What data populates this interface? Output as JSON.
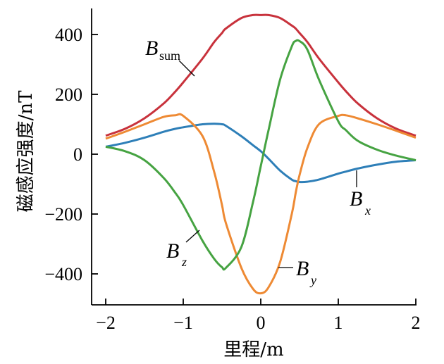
{
  "chart_data": {
    "type": "line",
    "xlabel": "里程/m",
    "ylabel": "磁感应强度/nT",
    "xlim": [
      -2,
      2
    ],
    "ylim": [
      -500,
      490
    ],
    "xticks": [
      -2,
      -1,
      0,
      1,
      2
    ],
    "yticks": [
      -400,
      -200,
      0,
      200,
      400
    ],
    "xtick_labels": [
      "−2",
      "−1",
      "0",
      "1",
      "2"
    ],
    "ytick_labels": [
      "−400",
      "−200",
      "0",
      "200",
      "400"
    ],
    "grid": false,
    "x": [
      -2,
      -1.75,
      -1.5,
      -1.25,
      -1.1,
      -1,
      -0.75,
      -0.6,
      -0.5,
      -0.45,
      -0.25,
      -0.1,
      0,
      0.1,
      0.25,
      0.4,
      0.45,
      0.5,
      0.6,
      0.75,
      1,
      1.1,
      1.25,
      1.5,
      1.75,
      2
    ],
    "series": [
      {
        "name": "B",
        "sub": "sum",
        "color": "#c8323c",
        "values": [
          62,
          85,
          120,
          170,
          210,
          240,
          320,
          375,
          405,
          420,
          455,
          465,
          465,
          465,
          455,
          430,
          420,
          405,
          375,
          320,
          240,
          210,
          170,
          120,
          85,
          62
        ]
      },
      {
        "name": "B",
        "sub": "x",
        "color": "#2e7fb8",
        "values": [
          25,
          38,
          55,
          75,
          85,
          90,
          100,
          102,
          100,
          95,
          60,
          30,
          10,
          -15,
          -55,
          -85,
          -90,
          -93,
          -92,
          -85,
          -65,
          -58,
          -48,
          -35,
          -25,
          -20
        ]
      },
      {
        "name": "B",
        "sub": "y",
        "color": "#ee8a34",
        "values": [
          52,
          75,
          100,
          125,
          130,
          128,
          60,
          -60,
          -170,
          -230,
          -380,
          -450,
          -465,
          -445,
          -360,
          -200,
          -130,
          -70,
          20,
          100,
          128,
          130,
          120,
          100,
          78,
          55
        ]
      },
      {
        "name": "B",
        "sub": "z",
        "color": "#46a342",
        "values": [
          25,
          10,
          -20,
          -80,
          -130,
          -170,
          -290,
          -350,
          -378,
          -380,
          -310,
          -160,
          -40,
          80,
          250,
          360,
          378,
          378,
          350,
          250,
          110,
          80,
          45,
          15,
          -5,
          -20
        ]
      }
    ]
  }
}
